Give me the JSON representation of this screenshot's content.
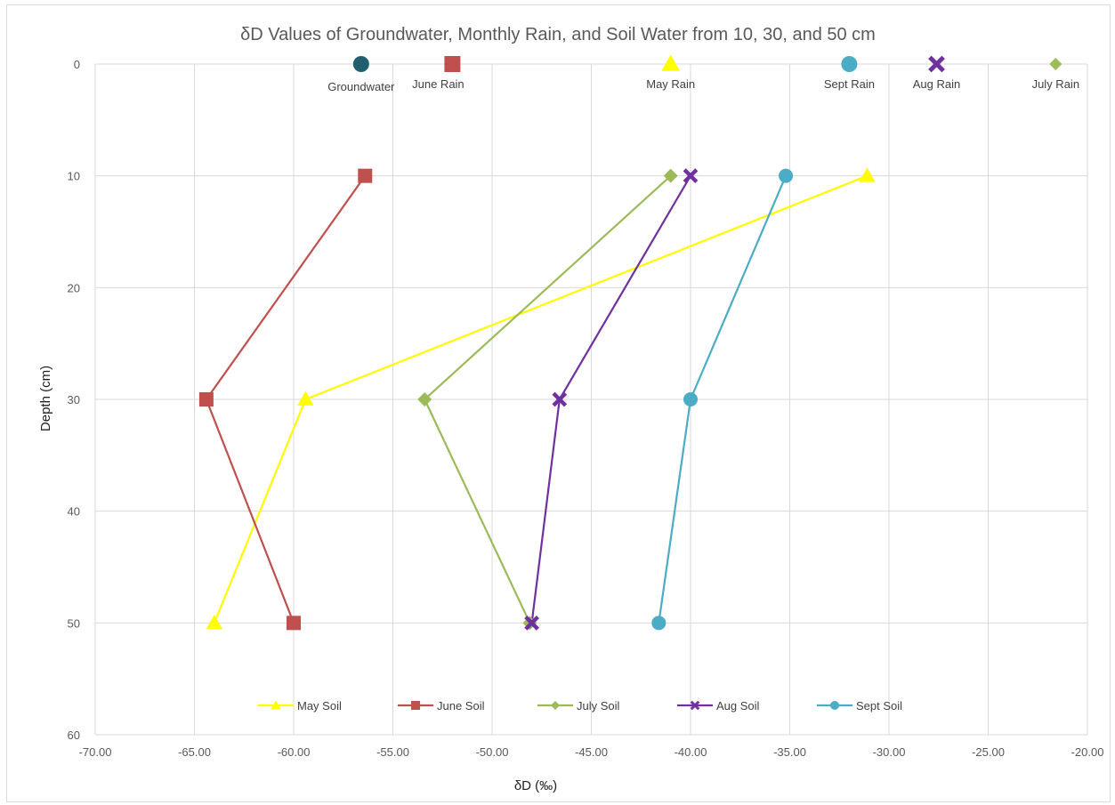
{
  "chart_data": {
    "type": "scatter",
    "title": "δD Values of Groundwater, Monthly Rain, and Soil Water from 10, 30, and 50 cm",
    "xlabel": "δD (‰)",
    "ylabel": "Depth (cm)",
    "xlim": [
      -70,
      -20
    ],
    "ylim": [
      0,
      60
    ],
    "y_inverted": true,
    "grid": true,
    "x_ticks": [
      "-70.00",
      "-65.00",
      "-60.00",
      "-55.00",
      "-50.00",
      "-45.00",
      "-40.00",
      "-35.00",
      "-30.00",
      "-25.00",
      "-20.00"
    ],
    "y_ticks": [
      "0",
      "10",
      "20",
      "30",
      "40",
      "50",
      "60"
    ],
    "legend_position": "bottom",
    "rain_points": [
      {
        "name": "Groundwater",
        "x": -56.6,
        "y": 0,
        "marker": "circle",
        "color": "#1f5f6e"
      },
      {
        "name": "June Rain",
        "x": -52.0,
        "y": 0,
        "marker": "square",
        "color": "#c0504d"
      },
      {
        "name": "May Rain",
        "x": -41.0,
        "y": 0,
        "marker": "triangle",
        "color": "#ffff00"
      },
      {
        "name": "Sept Rain",
        "x": -32.0,
        "y": 0,
        "marker": "circle",
        "color": "#4bacc6"
      },
      {
        "name": "Aug Rain",
        "x": -27.6,
        "y": 0,
        "marker": "x",
        "color": "#7030a0"
      },
      {
        "name": "July Rain",
        "x": -21.6,
        "y": 0,
        "marker": "diamond",
        "color": "#9bbb59"
      }
    ],
    "series": [
      {
        "name": "May Soil",
        "marker": "triangle",
        "color": "#ffff00",
        "x": [
          -31.1,
          -59.4,
          -64.0
        ],
        "y": [
          10,
          30,
          50
        ]
      },
      {
        "name": "June Soil",
        "marker": "square",
        "color": "#c0504d",
        "x": [
          -56.4,
          -64.4,
          -60.0
        ],
        "y": [
          10,
          30,
          50
        ]
      },
      {
        "name": "July Soil",
        "marker": "diamond",
        "color": "#9bbb59",
        "x": [
          -41.0,
          -53.4,
          -48.1
        ],
        "y": [
          10,
          30,
          50
        ]
      },
      {
        "name": "Aug Soil",
        "marker": "x",
        "color": "#7030a0",
        "x": [
          -40.0,
          -46.6,
          -48.0
        ],
        "y": [
          10,
          30,
          50
        ]
      },
      {
        "name": "Sept Soil",
        "marker": "circle",
        "color": "#4bacc6",
        "x": [
          -35.2,
          -40.0,
          -41.6
        ],
        "y": [
          10,
          30,
          50
        ]
      }
    ]
  }
}
